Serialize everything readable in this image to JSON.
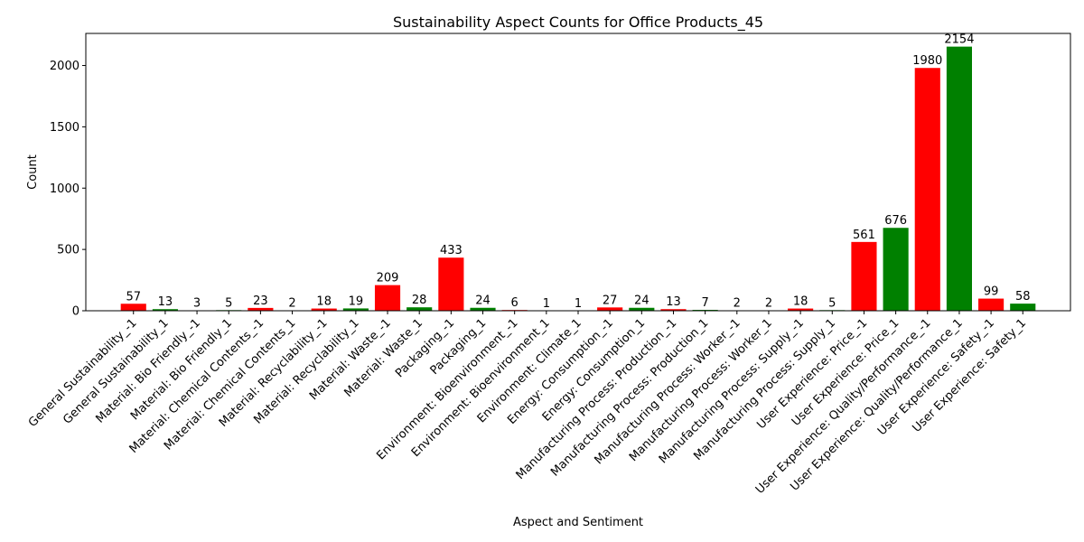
{
  "chart_data": {
    "type": "bar",
    "title": "Sustainability Aspect Counts for Office Products_45",
    "xlabel": "Aspect and Sentiment",
    "ylabel": "Count",
    "ylim": [
      0,
      2261.7
    ],
    "yticks": [
      0,
      500,
      1000,
      1500,
      2000
    ],
    "grid": false,
    "legend": "none",
    "colors": {
      "negative": "#ff0000",
      "positive": "#008000"
    },
    "categories": [
      "General Sustainability_-1",
      "General Sustainability_1",
      "Material: Bio Friendly_-1",
      "Material: Bio Friendly_1",
      "Material: Chemical Contents_-1",
      "Material: Chemical Contents_1",
      "Material: Recyclability_-1",
      "Material: Recyclability_1",
      "Material: Waste_-1",
      "Material: Waste_1",
      "Packaging_-1",
      "Packaging_1",
      "Environment: Bioenvironment_-1",
      "Environment: Bioenvironment_1",
      "Environment: Climate_1",
      "Energy: Consumption_-1",
      "Energy: Consumption_1",
      "Manufacturing Process: Production_-1",
      "Manufacturing Process: Production_1",
      "Manufacturing Process: Worker_-1",
      "Manufacturing Process: Worker_1",
      "Manufacturing Process: Supply_-1",
      "Manufacturing Process: Supply_1",
      "User Experience: Price_-1",
      "User Experience: Price_1",
      "User Experience: Quality/Performance_-1",
      "User Experience: Quality/Performance_1",
      "User Experience: Safety_-1",
      "User Experience: Safety_1"
    ],
    "values": [
      57,
      13,
      3,
      5,
      23,
      2,
      18,
      19,
      209,
      28,
      433,
      24,
      6,
      1,
      1,
      27,
      24,
      13,
      7,
      2,
      2,
      18,
      5,
      561,
      676,
      1980,
      2154,
      99,
      58
    ],
    "bar_colors": [
      "#ff0000",
      "#008000",
      "#ff0000",
      "#008000",
      "#ff0000",
      "#008000",
      "#ff0000",
      "#008000",
      "#ff0000",
      "#008000",
      "#ff0000",
      "#008000",
      "#ff0000",
      "#008000",
      "#008000",
      "#ff0000",
      "#008000",
      "#ff0000",
      "#008000",
      "#ff0000",
      "#008000",
      "#ff0000",
      "#008000",
      "#ff0000",
      "#008000",
      "#ff0000",
      "#008000",
      "#ff0000",
      "#008000"
    ]
  }
}
